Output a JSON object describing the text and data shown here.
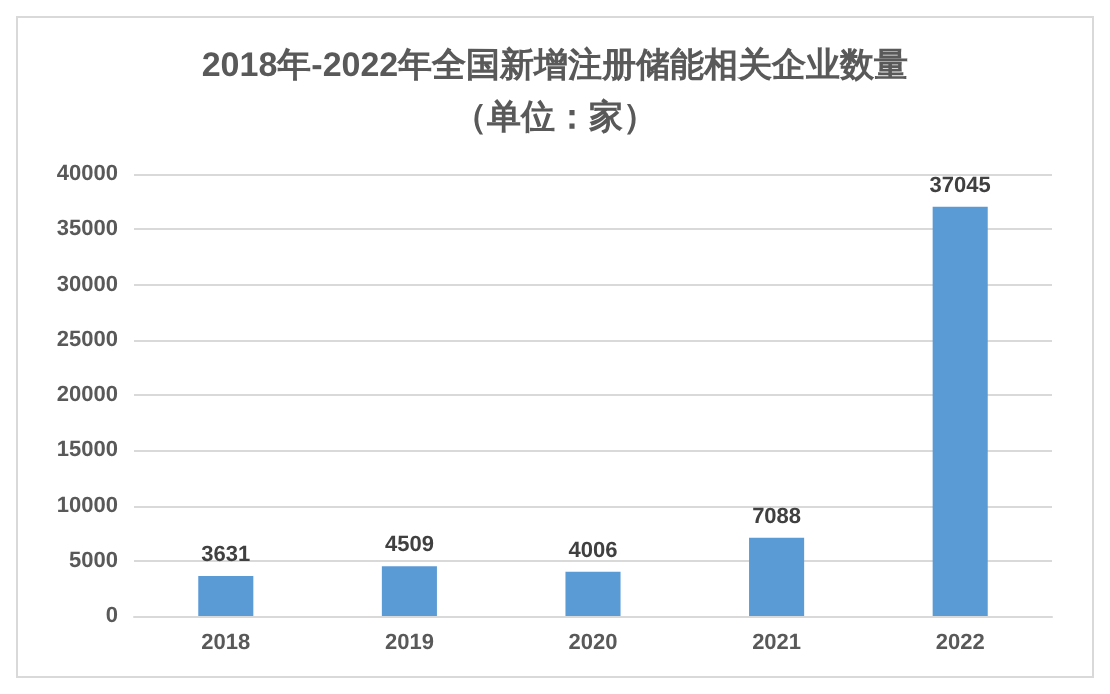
{
  "chart_data": {
    "type": "bar",
    "title": "2018年-2022年全国新增注册储能相关企业数量",
    "subtitle": "（单位：家）",
    "categories": [
      "2018",
      "2019",
      "2020",
      "2021",
      "2022"
    ],
    "values": [
      3631,
      4509,
      4006,
      7088,
      37045
    ],
    "color": "#5b9bd5",
    "ylim": [
      0,
      40000
    ],
    "yticks": [
      0,
      5000,
      10000,
      15000,
      20000,
      25000,
      30000,
      35000,
      40000
    ],
    "grid": "y",
    "data_labels": true
  }
}
